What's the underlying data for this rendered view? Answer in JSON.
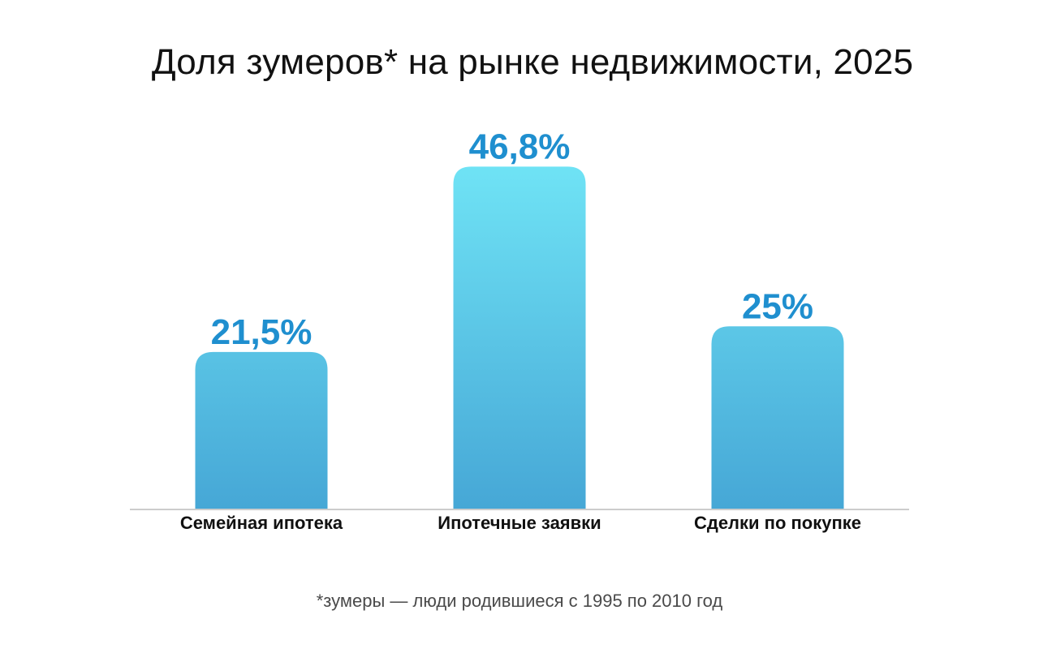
{
  "chart_data": {
    "type": "bar",
    "title": "Доля зумеров* на рынке недвижимости, 2025",
    "categories": [
      "Семейная ипотека",
      "Ипотечные заявки",
      "Сделки по покупке"
    ],
    "values": [
      21.5,
      46.8,
      25
    ],
    "value_labels": [
      "21,5%",
      "46,8%",
      "25%"
    ],
    "unit": "%",
    "ylim": [
      0,
      50
    ],
    "grid": false,
    "colors": {
      "bar_top": "#6fe3f5",
      "bar_bottom": "#46a7d6",
      "value_text": "#1f8fcf",
      "axis": "#cccccc"
    }
  },
  "footnote": "*зумеры — люди родившиеся с 1995 по 2010 год"
}
